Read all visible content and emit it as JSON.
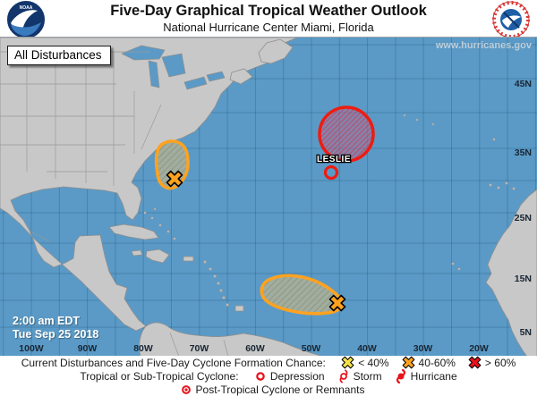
{
  "header": {
    "title": "Five-Day Graphical Tropical Weather Outlook",
    "subtitle": "National Hurricane Center  Miami, Florida",
    "noaa_logo_text": "NOAA",
    "nws_logo_name": "National Weather Service"
  },
  "map": {
    "button_label": "All Disturbances",
    "watermark": "www.hurricanes.gov",
    "timestamp": {
      "line1": "2:00 am EDT",
      "line2": "Tue Sep 25 2018"
    },
    "lat_labels": [
      "45N",
      "35N",
      "25N",
      "15N",
      "5N"
    ],
    "lon_labels": [
      "100W",
      "90W",
      "80W",
      "70W",
      "60W",
      "50W",
      "40W",
      "30W",
      "20W"
    ],
    "storm": {
      "name": "LESLIE",
      "symbol": "storm-circle"
    },
    "disturbances": [
      {
        "area": "off US southeast coast",
        "outline": "orange",
        "marker": "x-orange",
        "formation_chance": "40-60%"
      },
      {
        "area": "central subtropical Atlantic around Leslie",
        "outline": "red",
        "marker": "none",
        "formation_chance": "> 60%"
      },
      {
        "area": "tropical Atlantic east of Lesser Antilles",
        "outline": "orange",
        "marker": "x-orange",
        "formation_chance": "40-60%"
      }
    ]
  },
  "legend": {
    "line1": {
      "heading": "Current Disturbances and Five-Day Cyclone Formation Chance: ",
      "items": [
        {
          "symbol": "x-yellow",
          "label": "< 40%"
        },
        {
          "symbol": "x-orange",
          "label": "40-60%"
        },
        {
          "symbol": "x-red",
          "label": "> 60%"
        }
      ]
    },
    "line2": {
      "heading": "Tropical or Sub-Tropical Cyclone: ",
      "items": [
        {
          "symbol": "depression",
          "label": "Depression"
        },
        {
          "symbol": "storm",
          "label": "Storm"
        },
        {
          "symbol": "hurricane",
          "label": "Hurricane"
        }
      ]
    },
    "line3": {
      "items": [
        {
          "symbol": "post-tropical",
          "label": "Post-Tropical Cyclone or Remnants"
        }
      ]
    }
  },
  "colors": {
    "ocean": "#5B9AC6",
    "land": "#C8C8C8",
    "orange": "#FFA21F",
    "red": "#E8131B",
    "yellow": "#F5E14A"
  }
}
